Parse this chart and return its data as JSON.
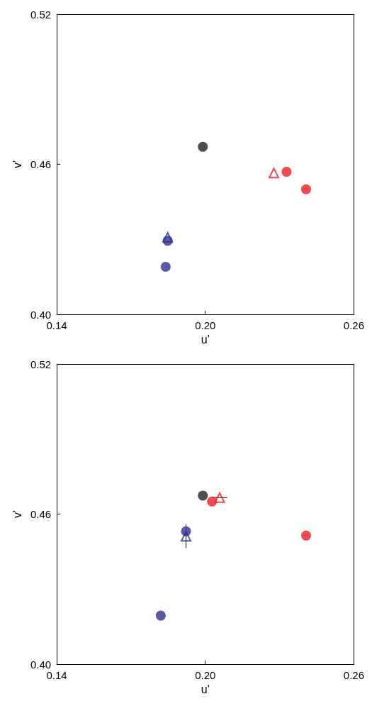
{
  "chart_data": [
    {
      "type": "scatter",
      "xlabel": "u'",
      "ylabel": "v'",
      "xlim": [
        0.14,
        0.26
      ],
      "ylim": [
        0.4,
        0.52
      ],
      "xticks": [
        {
          "value": 0.14,
          "label": "0.14"
        },
        {
          "value": 0.2,
          "label": "0.20"
        },
        {
          "value": 0.26,
          "label": "0.26"
        }
      ],
      "yticks": [
        {
          "value": 0.4,
          "label": "0.40"
        },
        {
          "value": 0.46,
          "label": "0.46"
        },
        {
          "value": 0.52,
          "label": "0.52"
        }
      ],
      "grid": false,
      "series": [
        {
          "color": "#231f20",
          "marker": "circle",
          "x": [
            0.199
          ],
          "values": [
            0.467
          ]
        },
        {
          "color": "#ed1c24",
          "marker": "circle",
          "x": [
            0.2407
          ],
          "values": [
            0.45
          ]
        },
        {
          "color": "#ed1c24",
          "marker": "circle",
          "x": [
            0.2328
          ],
          "values": [
            0.457
          ]
        },
        {
          "color": "#ed1c24",
          "marker": "triangle",
          "x": [
            0.2277
          ],
          "values": [
            0.4565
          ]
        },
        {
          "color": "#2e3192",
          "marker": "triangle",
          "x": [
            0.1848
          ],
          "values": [
            0.4308
          ]
        },
        {
          "color": "#2e3192",
          "marker": "circle",
          "x": [
            0.1848
          ],
          "values": [
            0.4294
          ]
        },
        {
          "color": "#2e3192",
          "marker": "circle",
          "x": [
            0.184
          ],
          "values": [
            0.419
          ]
        }
      ]
    },
    {
      "type": "scatter",
      "xlabel": "u'",
      "ylabel": "v'",
      "xlim": [
        0.14,
        0.26
      ],
      "ylim": [
        0.4,
        0.52
      ],
      "xticks": [
        {
          "value": 0.14,
          "label": "0.14"
        },
        {
          "value": 0.2,
          "label": "0.20"
        },
        {
          "value": 0.26,
          "label": "0.26"
        }
      ],
      "yticks": [
        {
          "value": 0.4,
          "label": "0.40"
        },
        {
          "value": 0.46,
          "label": "0.46"
        },
        {
          "value": 0.52,
          "label": "0.52"
        }
      ],
      "grid": false,
      "series": [
        {
          "color": "#231f20",
          "marker": "circle",
          "x": [
            0.199
          ],
          "values": [
            0.4674
          ]
        },
        {
          "color": "#ed1c24",
          "marker": "circle",
          "x": [
            0.2027
          ],
          "values": [
            0.465
          ]
        },
        {
          "color": "#ed1c24",
          "marker": "triangle",
          "x": [
            0.2058
          ],
          "values": [
            0.4666
          ],
          "xerrors": [
            0.003
          ]
        },
        {
          "color": "#ed1c24",
          "marker": "circle",
          "x": [
            0.2407
          ],
          "values": [
            0.4514
          ]
        },
        {
          "color": "#2e3192",
          "marker": "circle",
          "x": [
            0.1922
          ],
          "values": [
            0.4531
          ]
        },
        {
          "color": "#2e3192",
          "marker": "triangle",
          "x": [
            0.1922
          ],
          "values": [
            0.4511
          ],
          "errors": [
            0.0047
          ]
        },
        {
          "color": "#2e3192",
          "marker": "circle",
          "x": [
            0.182
          ],
          "values": [
            0.4194
          ]
        }
      ]
    }
  ]
}
